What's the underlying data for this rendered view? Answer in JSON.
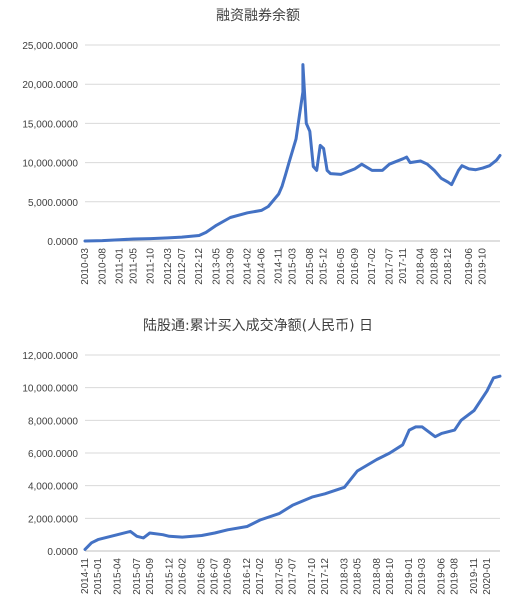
{
  "chart_data": [
    {
      "type": "line",
      "title": "融资融券余额",
      "xlabel": "",
      "ylabel": "",
      "ylim": [
        0,
        25000
      ],
      "yticks": [
        "0.0000",
        "5,000.0000",
        "10,000.0000",
        "15,000.0000",
        "20,000.0000",
        "25,000.0000"
      ],
      "ytick_values": [
        0,
        5000,
        10000,
        15000,
        20000,
        25000
      ],
      "xticks": [
        "2010-03",
        "2010-08",
        "2011-01",
        "2011-05",
        "2011-10",
        "2012-03",
        "2012-07",
        "2012-12",
        "2013-05",
        "2013-09",
        "2014-02",
        "2014-06",
        "2014-11",
        "2015-03",
        "2015-08",
        "2015-12",
        "2016-05",
        "2016-09",
        "2017-02",
        "2017-07",
        "2017-11",
        "2018-04",
        "2018-08",
        "2018-12",
        "2019-06",
        "2019-10"
      ],
      "xlim": [
        "2010-03",
        "2020-03"
      ],
      "grid": true,
      "legend": "none",
      "series": [
        {
          "x": [
            "2010-03",
            "2010-08",
            "2011-01",
            "2011-05",
            "2011-10",
            "2012-03",
            "2012-07",
            "2012-12",
            "2013-02",
            "2013-05",
            "2013-09",
            "2014-02",
            "2014-06",
            "2014-08",
            "2014-11",
            "2014-12",
            "2015-01",
            "2015-02",
            "2015-03",
            "2015-04",
            "2015-05",
            "2015-06",
            "2015-06",
            "2015-07",
            "2015-08",
            "2015-09",
            "2015-10",
            "2015-11",
            "2015-12",
            "2016-01",
            "2016-02",
            "2016-05",
            "2016-09",
            "2016-11",
            "2017-02",
            "2017-05",
            "2017-07",
            "2017-11",
            "2017-12",
            "2018-01",
            "2018-04",
            "2018-06",
            "2018-08",
            "2018-10",
            "2018-12",
            "2019-01",
            "2019-03",
            "2019-04",
            "2019-06",
            "2019-08",
            "2019-10",
            "2019-12",
            "2020-02",
            "2020-03"
          ],
          "values": [
            0,
            50,
            150,
            250,
            300,
            400,
            500,
            700,
            1100,
            2000,
            3000,
            3600,
            3900,
            4400,
            6000,
            7000,
            8500,
            10000,
            11500,
            13000,
            16000,
            19000,
            22500,
            15000,
            14000,
            9500,
            9000,
            12200,
            11800,
            9000,
            8600,
            8500,
            9200,
            9800,
            9000,
            9000,
            9800,
            10500,
            10700,
            10000,
            10200,
            9800,
            9000,
            8000,
            7500,
            7200,
            9000,
            9600,
            9200,
            9100,
            9300,
            9600,
            10300,
            10900
          ]
        }
      ]
    },
    {
      "type": "line",
      "title": "陆股通:累计买入成交净额(人民币) 日",
      "xlabel": "",
      "ylabel": "",
      "ylim": [
        0,
        12000
      ],
      "yticks": [
        "0.0000",
        "2,000.0000",
        "4,000.0000",
        "6,000.0000",
        "8,000.0000",
        "10,000.0000",
        "12,000.0000"
      ],
      "ytick_values": [
        0,
        2000,
        4000,
        6000,
        8000,
        10000,
        12000
      ],
      "xticks": [
        "2014-11",
        "2015-01",
        "2015-04",
        "2015-07",
        "2015-09",
        "2015-12",
        "2016-02",
        "2016-05",
        "2016-07",
        "2016-09",
        "2016-12",
        "2017-02",
        "2017-05",
        "2017-07",
        "2017-10",
        "2017-12",
        "2018-03",
        "2018-05",
        "2018-08",
        "2018-10",
        "2019-01",
        "2019-03",
        "2019-06",
        "2019-08",
        "2019-11",
        "2020-01"
      ],
      "xlim": [
        "2014-11",
        "2020-03"
      ],
      "grid": true,
      "legend": "none",
      "series": [
        {
          "x": [
            "2014-11",
            "2014-12",
            "2015-01",
            "2015-04",
            "2015-06",
            "2015-07",
            "2015-08",
            "2015-09",
            "2015-11",
            "2015-12",
            "2016-02",
            "2016-05",
            "2016-07",
            "2016-09",
            "2016-12",
            "2017-02",
            "2017-05",
            "2017-07",
            "2017-10",
            "2017-12",
            "2018-03",
            "2018-05",
            "2018-08",
            "2018-10",
            "2018-12",
            "2019-01",
            "2019-02",
            "2019-03",
            "2019-04",
            "2019-05",
            "2019-06",
            "2019-08",
            "2019-09",
            "2019-11",
            "2020-01",
            "2020-02",
            "2020-03"
          ],
          "values": [
            100,
            500,
            700,
            1000,
            1200,
            900,
            800,
            1100,
            1000,
            900,
            850,
            950,
            1100,
            1300,
            1500,
            1900,
            2300,
            2800,
            3300,
            3500,
            3900,
            4900,
            5600,
            6000,
            6500,
            7400,
            7600,
            7600,
            7300,
            7000,
            7200,
            7400,
            8000,
            8600,
            9800,
            10600,
            10700
          ]
        }
      ]
    }
  ]
}
